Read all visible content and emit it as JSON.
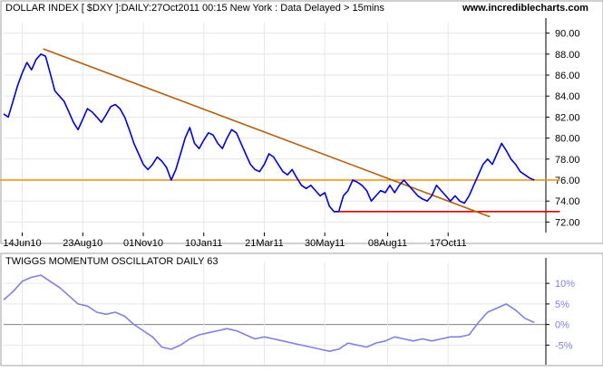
{
  "chart_data": [
    {
      "type": "line",
      "title": "DOLLAR INDEX [ $DXY ]:DAILY:27Oct2011 00:15 New York  : Data Delayed > 15mins",
      "site_url": "www.incrediblecharts.com",
      "x_tick_labels": [
        "14Jun10",
        "23Aug10",
        "01Nov10",
        "10Jan11",
        "21Mar11",
        "30May11",
        "08Aug11",
        "17Oct11"
      ],
      "y_tick_labels": [
        "72.00",
        "74.00",
        "76.00",
        "78.00",
        "80.00",
        "82.00",
        "84.00",
        "86.00",
        "88.00",
        "90.00"
      ],
      "ylim": [
        71,
        91
      ],
      "grid": true,
      "series": [
        {
          "color": "#0000cc",
          "points": [
            [
              0,
              82.3
            ],
            [
              2,
              82.0
            ],
            [
              4,
              83.5
            ],
            [
              6,
              85.0
            ],
            [
              8,
              86.2
            ],
            [
              10,
              87.2
            ],
            [
              12,
              86.5
            ],
            [
              14,
              87.5
            ],
            [
              16,
              88.0
            ],
            [
              18,
              87.8
            ],
            [
              20,
              86.2
            ],
            [
              22,
              84.5
            ],
            [
              24,
              84.0
            ],
            [
              26,
              83.5
            ],
            [
              28,
              82.5
            ],
            [
              30,
              81.5
            ],
            [
              32,
              80.8
            ],
            [
              34,
              81.8
            ],
            [
              36,
              82.8
            ],
            [
              38,
              82.5
            ],
            [
              40,
              82.0
            ],
            [
              42,
              81.5
            ],
            [
              44,
              82.2
            ],
            [
              46,
              83.0
            ],
            [
              48,
              83.2
            ],
            [
              50,
              82.8
            ],
            [
              52,
              82.0
            ],
            [
              54,
              80.8
            ],
            [
              56,
              79.5
            ],
            [
              58,
              78.5
            ],
            [
              60,
              77.5
            ],
            [
              62,
              77.0
            ],
            [
              64,
              77.5
            ],
            [
              66,
              78.2
            ],
            [
              68,
              77.8
            ],
            [
              70,
              77.2
            ],
            [
              72,
              76.0
            ],
            [
              74,
              77.0
            ],
            [
              76,
              78.5
            ],
            [
              78,
              80.0
            ],
            [
              80,
              81.0
            ],
            [
              82,
              79.5
            ],
            [
              84,
              79.0
            ],
            [
              86,
              79.8
            ],
            [
              88,
              80.5
            ],
            [
              90,
              80.3
            ],
            [
              92,
              79.5
            ],
            [
              94,
              79.0
            ],
            [
              96,
              80.0
            ],
            [
              98,
              80.8
            ],
            [
              100,
              80.5
            ],
            [
              102,
              79.5
            ],
            [
              104,
              78.5
            ],
            [
              106,
              77.5
            ],
            [
              108,
              77.0
            ],
            [
              110,
              76.8
            ],
            [
              112,
              77.5
            ],
            [
              114,
              78.5
            ],
            [
              116,
              78.2
            ],
            [
              118,
              77.5
            ],
            [
              120,
              76.8
            ],
            [
              122,
              76.5
            ],
            [
              124,
              77.0
            ],
            [
              126,
              76.2
            ],
            [
              128,
              75.5
            ],
            [
              130,
              75.2
            ],
            [
              132,
              75.5
            ],
            [
              134,
              75.0
            ],
            [
              136,
              74.5
            ],
            [
              138,
              74.8
            ],
            [
              140,
              73.5
            ],
            [
              142,
              73.0
            ],
            [
              144,
              73.0
            ],
            [
              146,
              74.5
            ],
            [
              148,
              75.0
            ],
            [
              150,
              76.0
            ],
            [
              152,
              75.8
            ],
            [
              154,
              75.5
            ],
            [
              156,
              75.0
            ],
            [
              158,
              74.0
            ],
            [
              160,
              74.5
            ],
            [
              162,
              75.0
            ],
            [
              164,
              74.8
            ],
            [
              166,
              75.5
            ],
            [
              168,
              74.8
            ],
            [
              170,
              75.5
            ],
            [
              172,
              76.0
            ],
            [
              174,
              75.5
            ],
            [
              176,
              75.0
            ],
            [
              178,
              74.5
            ],
            [
              180,
              74.2
            ],
            [
              182,
              74.0
            ],
            [
              184,
              74.5
            ],
            [
              186,
              75.5
            ],
            [
              188,
              75.0
            ],
            [
              190,
              74.5
            ],
            [
              192,
              74.0
            ],
            [
              194,
              74.5
            ],
            [
              196,
              74.0
            ],
            [
              198,
              73.8
            ],
            [
              200,
              74.5
            ],
            [
              202,
              75.5
            ],
            [
              204,
              76.5
            ],
            [
              206,
              77.5
            ],
            [
              208,
              78.0
            ],
            [
              210,
              77.5
            ],
            [
              212,
              78.5
            ],
            [
              214,
              79.5
            ],
            [
              216,
              78.8
            ],
            [
              218,
              78.0
            ],
            [
              220,
              77.5
            ],
            [
              222,
              76.8
            ],
            [
              224,
              76.5
            ],
            [
              226,
              76.2
            ],
            [
              228,
              76.0
            ]
          ]
        },
        {
          "color": "#b06010",
          "points": [
            [
              17,
              88.5
            ],
            [
              209,
              72.5
            ]
          ]
        },
        {
          "color": "#ff8c00",
          "points": [
            [
              -8,
              76.0
            ],
            [
              239,
              76.0
            ]
          ]
        },
        {
          "color": "#e00000",
          "points": [
            [
              142,
              73.0
            ],
            [
              239,
              73.0
            ]
          ]
        }
      ]
    },
    {
      "type": "area",
      "title": "TWIGGS MOMENTUM OSCILLATOR DAILY 63",
      "y_tick_labels": [
        "10%",
        "5%",
        "0%",
        "-5%"
      ],
      "ylim": [
        -8,
        14
      ],
      "grid": true,
      "series": [
        {
          "color": "#8080e0",
          "points": [
            [
              0,
              6.0
            ],
            [
              4,
              8.0
            ],
            [
              8,
              10.5
            ],
            [
              12,
              11.5
            ],
            [
              16,
              12.0
            ],
            [
              20,
              10.5
            ],
            [
              24,
              9.0
            ],
            [
              28,
              7.0
            ],
            [
              32,
              5.0
            ],
            [
              36,
              4.5
            ],
            [
              40,
              3.0
            ],
            [
              44,
              2.5
            ],
            [
              48,
              3.0
            ],
            [
              52,
              2.0
            ],
            [
              56,
              0.0
            ],
            [
              60,
              -1.5
            ],
            [
              64,
              -3.0
            ],
            [
              68,
              -5.5
            ],
            [
              72,
              -6.0
            ],
            [
              76,
              -5.0
            ],
            [
              80,
              -3.5
            ],
            [
              84,
              -2.5
            ],
            [
              88,
              -2.0
            ],
            [
              92,
              -1.5
            ],
            [
              96,
              -1.0
            ],
            [
              100,
              -1.5
            ],
            [
              104,
              -2.5
            ],
            [
              108,
              -3.5
            ],
            [
              112,
              -3.0
            ],
            [
              116,
              -3.5
            ],
            [
              120,
              -4.0
            ],
            [
              124,
              -4.5
            ],
            [
              128,
              -5.0
            ],
            [
              132,
              -5.5
            ],
            [
              136,
              -6.0
            ],
            [
              140,
              -6.5
            ],
            [
              144,
              -6.0
            ],
            [
              148,
              -4.5
            ],
            [
              152,
              -5.0
            ],
            [
              156,
              -5.5
            ],
            [
              160,
              -4.5
            ],
            [
              164,
              -4.0
            ],
            [
              168,
              -3.0
            ],
            [
              172,
              -3.5
            ],
            [
              176,
              -4.0
            ],
            [
              180,
              -3.5
            ],
            [
              184,
              -4.0
            ],
            [
              188,
              -3.5
            ],
            [
              192,
              -3.0
            ],
            [
              196,
              -3.0
            ],
            [
              200,
              -2.5
            ],
            [
              204,
              0.5
            ],
            [
              208,
              3.0
            ],
            [
              212,
              4.0
            ],
            [
              216,
              5.0
            ],
            [
              220,
              3.5
            ],
            [
              224,
              1.5
            ],
            [
              228,
              0.5
            ]
          ]
        }
      ]
    }
  ]
}
